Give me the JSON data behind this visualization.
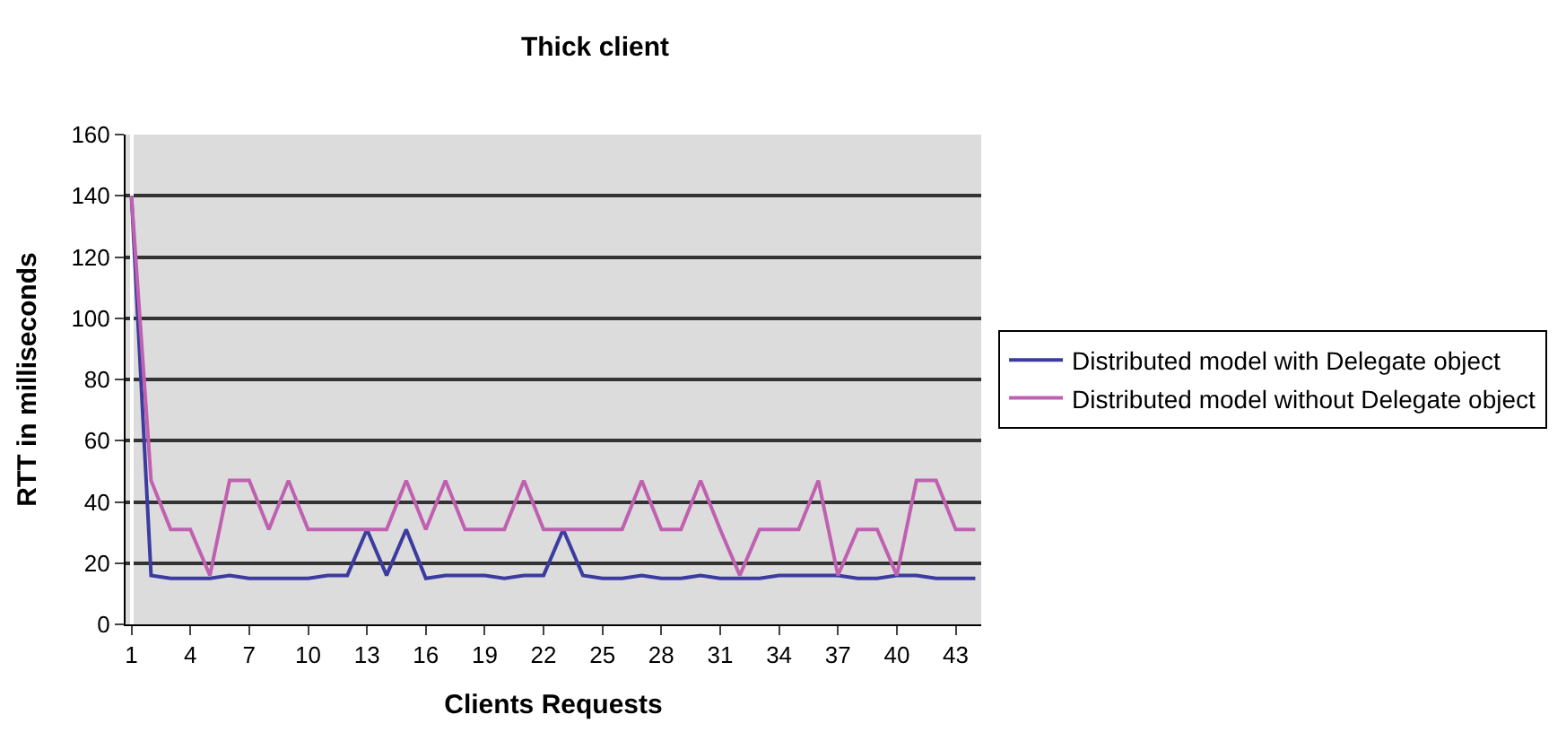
{
  "chart_data": {
    "type": "line",
    "title": "Thick client",
    "xlabel": "Clients Requests",
    "ylabel": "RTT in milliseconds",
    "categories": [
      "1",
      null,
      null,
      "4",
      null,
      null,
      "7",
      null,
      null,
      "10",
      null,
      null,
      "13",
      null,
      null,
      "16",
      null,
      null,
      "19",
      null,
      null,
      "22",
      null,
      null,
      "25",
      null,
      null,
      "28",
      null,
      null,
      "31",
      null,
      null,
      "34",
      null,
      null,
      "37",
      null,
      null,
      "40",
      null,
      null,
      "43",
      null
    ],
    "series": [
      {
        "name": "Distributed model with Delegate object",
        "color": "#3c3ca0",
        "values": [
          140,
          16,
          15,
          15,
          15,
          16,
          15,
          15,
          15,
          15,
          16,
          16,
          31,
          16,
          31,
          15,
          16,
          16,
          16,
          15,
          16,
          16,
          31,
          16,
          15,
          15,
          16,
          15,
          15,
          16,
          15,
          15,
          15,
          16,
          16,
          16,
          16,
          15,
          15,
          16,
          16,
          15,
          15,
          15
        ]
      },
      {
        "name": "Distributed model without Delegate object",
        "color": "#c060b0",
        "values": [
          140,
          47,
          31,
          31,
          16,
          47,
          47,
          31,
          47,
          31,
          31,
          31,
          31,
          31,
          47,
          31,
          47,
          31,
          31,
          31,
          47,
          31,
          31,
          31,
          31,
          31,
          47,
          31,
          31,
          47,
          31,
          16,
          31,
          31,
          31,
          47,
          16,
          31,
          31,
          16,
          47,
          47,
          31,
          31
        ]
      }
    ],
    "ylim": [
      0,
      160
    ],
    "yticks": [
      0,
      20,
      40,
      60,
      80,
      100,
      120,
      140,
      160
    ],
    "grid": "y",
    "legend": "right",
    "marker": "none",
    "line_style": "solid"
  }
}
